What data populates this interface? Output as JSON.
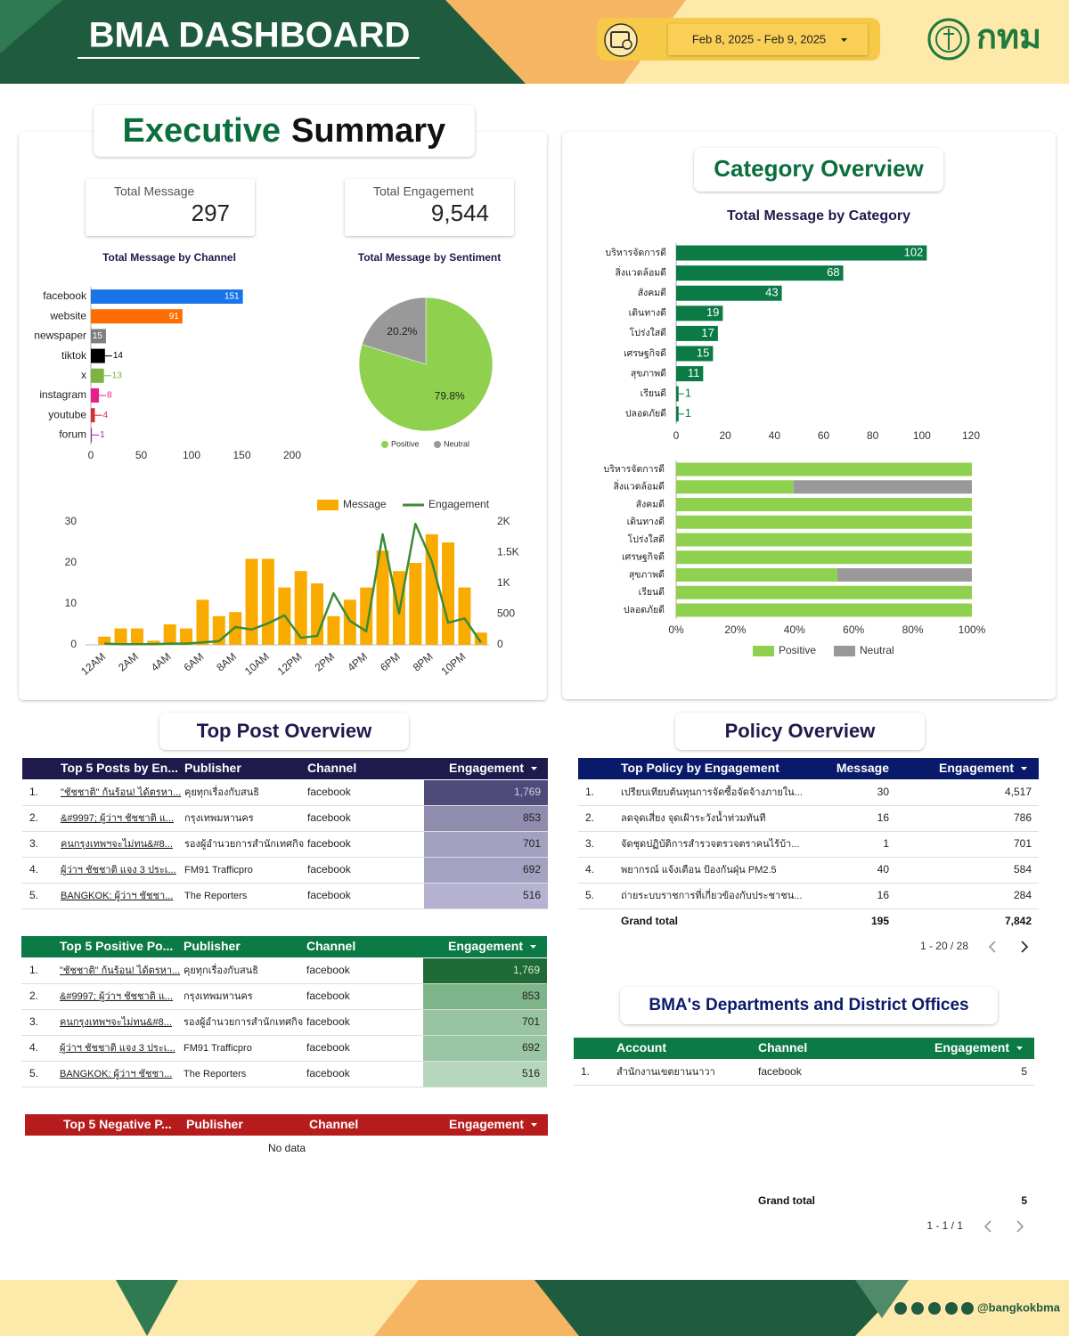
{
  "header": {
    "title": "BMA DASHBOARD",
    "date_range": "Feb 8, 2025 - Feb 9, 2025",
    "logo": "กทม"
  },
  "sections": {
    "executive_summary": [
      "Executive",
      "Summary"
    ],
    "category_overview": "Category Overview",
    "top_post_overview": "Top Post Overview",
    "policy_overview": "Policy Overview",
    "departments": "BMA's Departments and District Offices"
  },
  "kpis": [
    {
      "label": "Total Message",
      "value": 297
    },
    {
      "label": "Total Engagement",
      "value": 9544,
      "value_label": "9,544"
    }
  ],
  "chart_data": [
    {
      "type": "bar",
      "orientation": "horizontal",
      "title": "Total Message by Channel",
      "categories": [
        "facebook",
        "website",
        "newspaper",
        "tiktok",
        "x",
        "instagram",
        "youtube",
        "forum"
      ],
      "values": [
        151,
        91,
        15,
        14,
        13,
        8,
        4,
        1
      ],
      "colors": [
        "#1a73e8",
        "#ff6d01",
        "#7f7f7f",
        "#000000",
        "#7cb342",
        "#e91e8c",
        "#d32f2f",
        "#9c27b0"
      ],
      "xlim": [
        0,
        200
      ],
      "xticks": [
        0,
        50,
        100,
        150,
        200
      ],
      "data_labels": true
    },
    {
      "type": "pie",
      "title": "Total Message by Sentiment",
      "categories": [
        "Positive",
        "Neutral"
      ],
      "values": [
        79.8,
        20.2
      ],
      "value_labels": [
        "79.8%",
        "20.2%"
      ],
      "colors": [
        "#8fd14f",
        "#999999"
      ],
      "legend": "bottom"
    },
    {
      "type": "combo",
      "categories": [
        "12AM",
        null,
        "2AM",
        null,
        "4AM",
        null,
        "6AM",
        null,
        "8AM",
        null,
        "10AM",
        null,
        "12PM",
        null,
        "2PM",
        null,
        "4PM",
        null,
        "6PM",
        null,
        "8PM",
        null,
        "10PM",
        null
      ],
      "series": [
        {
          "name": "Message",
          "type": "bar",
          "color": "#f9ab00",
          "values": [
            2,
            4,
            4,
            1,
            5,
            4,
            11,
            7,
            8,
            21,
            21,
            14,
            18,
            15,
            7,
            11,
            14,
            23,
            18,
            20,
            27,
            25,
            14,
            3
          ]
        },
        {
          "name": "Engagement",
          "type": "line",
          "color": "#3d8b37",
          "axis": "y2",
          "values": [
            20,
            10,
            10,
            10,
            20,
            20,
            40,
            60,
            290,
            250,
            350,
            480,
            115,
            145,
            840,
            390,
            220,
            1800,
            510,
            1970,
            1360,
            360,
            430,
            40
          ]
        }
      ],
      "ylim": [
        0,
        30
      ],
      "yticks": [
        0,
        10,
        20,
        30
      ],
      "y2lim": [
        0,
        2000
      ],
      "y2ticks": [
        0,
        500,
        {
          "value": 1000,
          "label": "1K"
        },
        {
          "value": 1500,
          "label": "1.5K"
        },
        {
          "value": 2000,
          "label": "2K"
        }
      ],
      "legend": "top"
    },
    {
      "type": "bar",
      "orientation": "horizontal",
      "title": "Total Message by Category",
      "categories": [
        "บริหารจัดการดี",
        "สิ่งแวดล้อมดี",
        "สังคมดี",
        "เดินทางดี",
        "โปร่งใสดี",
        "เศรษฐกิจดี",
        "สุขภาพดี",
        "เรียนดี",
        "ปลอดภัยดี"
      ],
      "values": [
        102,
        68,
        43,
        19,
        17,
        15,
        11,
        1,
        1
      ],
      "color": "#0b7a45",
      "xlim": [
        0,
        120
      ],
      "xticks": [
        0,
        20,
        40,
        60,
        80,
        100,
        120
      ],
      "data_labels": true
    },
    {
      "type": "bar",
      "orientation": "horizontal",
      "stacked": true,
      "categories": [
        "บริหารจัดการดี",
        "สิ่งแวดล้อมดี",
        "สังคมดี",
        "เดินทางดี",
        "โปร่งใสดี",
        "เศรษฐกิจดี",
        "สุขภาพดี",
        "เรียนดี",
        "ปลอดภัยดี"
      ],
      "series": [
        {
          "name": "Positive",
          "color": "#8fd14f",
          "values": [
            100,
            39.7,
            100,
            100,
            100,
            100,
            54.5,
            100,
            100
          ]
        },
        {
          "name": "Neutral",
          "color": "#999999",
          "values": [
            0,
            60.3,
            0,
            0,
            0,
            0,
            45.5,
            0,
            0
          ]
        }
      ],
      "xlim": [
        0,
        100
      ],
      "xticks": [
        {
          "value": 0,
          "label": "0%"
        },
        {
          "value": 20,
          "label": "20%"
        },
        {
          "value": 40,
          "label": "40%"
        },
        {
          "value": 60,
          "label": "60%"
        },
        {
          "value": 80,
          "label": "80%"
        },
        {
          "value": 100,
          "label": "100%"
        }
      ],
      "legend": "bottom"
    }
  ],
  "tables": {
    "top_posts": {
      "columns": [
        "Top 5 Posts by En...",
        "Publisher",
        "Channel",
        "Engagement"
      ],
      "rows": [
        [
          "1.",
          "\"ชัชชาติ\" ก้นร้อน! ได้ตรหา...",
          "คุยทุกเรื่องกับสนธิ",
          "facebook",
          "1,769"
        ],
        [
          "2.",
          "&#9997; ผู้ว่าฯ ชัชชาติ แ...",
          "กรุงเทพมหานคร",
          "facebook",
          "853"
        ],
        [
          "3.",
          "คนกรุงเทพฯจะไม่ทน&#8...",
          "รองผู้อำนวยการสำนักเทศกิจ",
          "facebook",
          "701"
        ],
        [
          "4.",
          "ผู้ว่าฯ ชัชชาติ แจง 3 ประเ...",
          "FM91 Trafficpro",
          "facebook",
          "692"
        ],
        [
          "5.",
          "BANGKOK: ผู้ว่าฯ ชัชชา...",
          "The Reporters",
          "facebook",
          "516"
        ]
      ]
    },
    "top_positive": {
      "columns": [
        "Top 5 Positive Po...",
        "Publisher",
        "Channel",
        "Engagement"
      ],
      "rows": [
        [
          "1.",
          "\"ชัชชาติ\" ก้นร้อน! ได้ตรหา...",
          "คุยทุกเรื่องกับสนธิ",
          "facebook",
          "1,769"
        ],
        [
          "2.",
          "&#9997; ผู้ว่าฯ ชัชชาติ แ...",
          "กรุงเทพมหานคร",
          "facebook",
          "853"
        ],
        [
          "3.",
          "คนกรุงเทพฯจะไม่ทน&#8...",
          "รองผู้อำนวยการสำนักเทศกิจ",
          "facebook",
          "701"
        ],
        [
          "4.",
          "ผู้ว่าฯ ชัชชาติ แจง 3 ประเ...",
          "FM91 Trafficpro",
          "facebook",
          "692"
        ],
        [
          "5.",
          "BANGKOK: ผู้ว่าฯ ชัชชา...",
          "The Reporters",
          "facebook",
          "516"
        ]
      ]
    },
    "top_negative": {
      "columns": [
        "Top 5 Negative P...",
        "Publisher",
        "Channel",
        "Engagement"
      ],
      "empty": "No data"
    },
    "policy": {
      "columns": [
        "Top Policy by Engagement",
        "Message",
        "Engagement"
      ],
      "rows": [
        [
          "1.",
          "เปรียบเทียบต้นทุนการจัดซื้อจัดจ้างภายใน...",
          "30",
          "4,517"
        ],
        [
          "2.",
          "ลดจุดเสี่ยง จุดเฝ้าระวังน้ำท่วมทันที",
          "16",
          "786"
        ],
        [
          "3.",
          "จัดชุดปฏิบัติการสำรวจตรวจตราคนไร้บ้า...",
          "1",
          "701"
        ],
        [
          "4.",
          "พยากรณ์ แจ้งเตือน ป้องกันฝุ่น PM2.5",
          "40",
          "584"
        ],
        [
          "5.",
          "ถ่ายระบบราชการที่เกี่ยวข้องกับประชาชน...",
          "16",
          "284"
        ]
      ],
      "grand_total": [
        "Grand total",
        "195",
        "7,842"
      ],
      "pagination": "1 - 20 / 28"
    },
    "departments": {
      "columns": [
        "Account",
        "Channel",
        "Engagement"
      ],
      "rows": [
        [
          "1.",
          "สำนักงานเขตยานนาวา",
          "facebook",
          "5"
        ]
      ],
      "grand_total": [
        "Grand total",
        "5"
      ],
      "pagination": "1 - 1 / 1"
    }
  },
  "footer": {
    "handle": "@bangkokbma"
  }
}
